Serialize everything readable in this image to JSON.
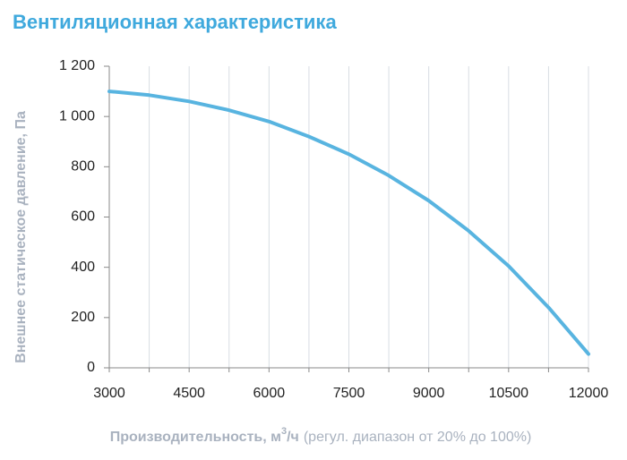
{
  "chart_data": {
    "type": "line",
    "title": "Вентиляционная характеристика",
    "y_label": "Внешнее статическое давление, Па",
    "x_label": {
      "main": "Производительность, м",
      "sup": "3",
      "unit": "/ч",
      "note": "(регул. диапазон от 20% до 100%)"
    },
    "x": [
      3000,
      3750,
      4500,
      5250,
      6000,
      6750,
      7500,
      8250,
      9000,
      9750,
      10500,
      11250,
      12000
    ],
    "series": [
      {
        "color": "#58b4e0",
        "values": [
          1100,
          1085,
          1060,
          1025,
          980,
          920,
          850,
          765,
          665,
          545,
          405,
          240,
          55
        ]
      }
    ],
    "xlim": [
      3000,
      12000
    ],
    "xticks": [
      3000,
      4500,
      6000,
      7500,
      9000,
      10500,
      12000
    ],
    "x_minor_grid": [
      3750,
      5250,
      6750,
      8250,
      9750,
      11250
    ],
    "ylim": [
      0,
      1200
    ],
    "yticks": [
      0,
      200,
      400,
      600,
      800,
      {
        "value": 1000,
        "label": "1 000"
      },
      {
        "value": 1200,
        "label": "1 200"
      }
    ],
    "grid": true
  }
}
